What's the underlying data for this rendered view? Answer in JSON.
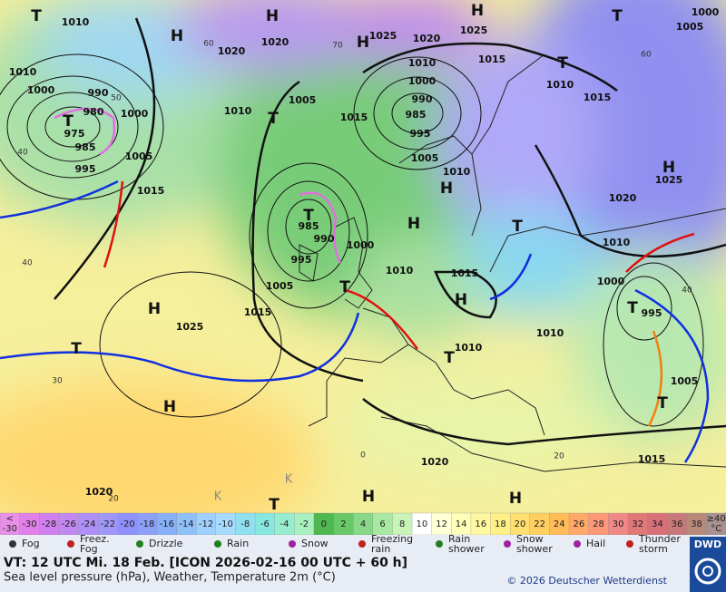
{
  "map": {
    "labels": [
      "T",
      "H",
      "H",
      "H",
      "H",
      "T",
      "T",
      "T",
      "T",
      "H",
      "H",
      "H",
      "T",
      "T",
      "H",
      "H",
      "T",
      "T",
      "T",
      "H",
      "T",
      "H",
      "H",
      "T",
      "T",
      "1010",
      "1020",
      "1025",
      "1020",
      "1025",
      "1015",
      "1010",
      "1000",
      "990",
      "985",
      "995",
      "1005",
      "1010",
      "1015",
      "1005",
      "1010",
      "1020",
      "1010",
      "1000",
      "990",
      "980",
      "975",
      "985",
      "995",
      "1000",
      "1005",
      "1015",
      "1010",
      "1015",
      "1000",
      "1005",
      "1025",
      "1020",
      "985",
      "990",
      "995",
      "1000",
      "1005",
      "1015",
      "1010",
      "1015",
      "1010",
      "1010",
      "1025",
      "1010",
      "1000",
      "995",
      "1005",
      "1015",
      "1020",
      "1020",
      "60",
      "70",
      "50",
      "40",
      "40",
      "30",
      "20",
      "20",
      "0",
      "60",
      "40",
      "K",
      "K"
    ]
  },
  "scale": {
    "cells": [
      {
        "lines": [
          "<",
          "-30"
        ],
        "color": "#e890e8"
      },
      {
        "lines": [
          "-30"
        ],
        "color": "#e080e8"
      },
      {
        "lines": [
          "-28"
        ],
        "color": "#d080f0"
      },
      {
        "lines": [
          "-26"
        ],
        "color": "#c088f0"
      },
      {
        "lines": [
          "-24"
        ],
        "color": "#b090f8"
      },
      {
        "lines": [
          "-22"
        ],
        "color": "#a098f8"
      },
      {
        "lines": [
          "-20"
        ],
        "color": "#9090ff"
      },
      {
        "lines": [
          "-18"
        ],
        "color": "#8ca0f8"
      },
      {
        "lines": [
          "-16"
        ],
        "color": "#88b0f8"
      },
      {
        "lines": [
          "-14"
        ],
        "color": "#90c0f8"
      },
      {
        "lines": [
          "-12"
        ],
        "color": "#a0d0ff"
      },
      {
        "lines": [
          "-10"
        ],
        "color": "#a8dcff"
      },
      {
        "lines": [
          "-8"
        ],
        "color": "#90e0f0"
      },
      {
        "lines": [
          "-6"
        ],
        "color": "#88e8e0"
      },
      {
        "lines": [
          "-4"
        ],
        "color": "#98ecd0"
      },
      {
        "lines": [
          "-2"
        ],
        "color": "#a8f0c0"
      },
      {
        "lines": [
          "0"
        ],
        "color": "#50b850"
      },
      {
        "lines": [
          "2"
        ],
        "color": "#68c868"
      },
      {
        "lines": [
          "4"
        ],
        "color": "#88d888"
      },
      {
        "lines": [
          "6"
        ],
        "color": "#a8e8a0"
      },
      {
        "lines": [
          "8"
        ],
        "color": "#c8f4b8"
      },
      {
        "lines": [
          "10"
        ],
        "color": "#ffffff"
      },
      {
        "lines": [
          "12"
        ],
        "color": "#ffffd8"
      },
      {
        "lines": [
          "14"
        ],
        "color": "#ffffb8"
      },
      {
        "lines": [
          "16"
        ],
        "color": "#fff8a0"
      },
      {
        "lines": [
          "18"
        ],
        "color": "#fff088"
      },
      {
        "lines": [
          "20"
        ],
        "color": "#ffe070"
      },
      {
        "lines": [
          "22"
        ],
        "color": "#ffd060"
      },
      {
        "lines": [
          "24"
        ],
        "color": "#ffbc58"
      },
      {
        "lines": [
          "26"
        ],
        "color": "#ffa868"
      },
      {
        "lines": [
          "28"
        ],
        "color": "#ff9878"
      },
      {
        "lines": [
          "30"
        ],
        "color": "#f08888"
      },
      {
        "lines": [
          "32"
        ],
        "color": "#e07878"
      },
      {
        "lines": [
          "34"
        ],
        "color": "#d87078"
      },
      {
        "lines": [
          "36"
        ],
        "color": "#c87878"
      },
      {
        "lines": [
          "38"
        ],
        "color": "#b88878"
      },
      {
        "lines": [
          "≥40",
          "°C"
        ],
        "color": "#a89090"
      }
    ]
  },
  "legend": {
    "items": [
      {
        "lines": [
          "Fog"
        ]
      },
      {
        "lines": [
          "Freez.",
          "Fog"
        ]
      },
      {
        "lines": [
          "Drizzle"
        ]
      },
      {
        "lines": [
          "Rain"
        ]
      },
      {
        "lines": [
          "Snow"
        ]
      },
      {
        "lines": [
          "Freezing",
          "rain"
        ]
      },
      {
        "lines": [
          "Rain",
          "shower"
        ]
      },
      {
        "lines": [
          "Snow",
          "shower"
        ]
      },
      {
        "lines": [
          "Hail"
        ]
      },
      {
        "lines": [
          "Thunder",
          "storm"
        ]
      }
    ]
  },
  "footer": {
    "valid_time": "VT: 12 UTC Mi.  18 Feb. [ICON 2026-02-16  00 UTC + 60 h]",
    "caption": "Sea level pressure (hPa), Weather, Temperature 2m (°C)",
    "copyright": "© 2026 Deutscher Wetterdienst",
    "logo": "DWD"
  }
}
